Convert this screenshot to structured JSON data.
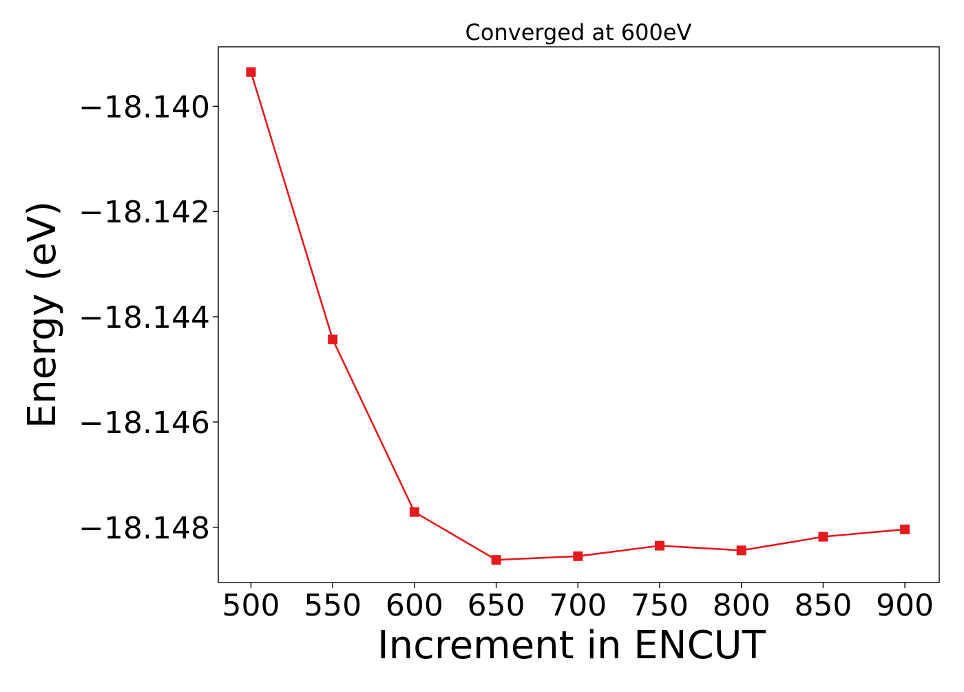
{
  "chart_data": {
    "type": "line",
    "title": "Converged at 600eV",
    "xlabel": "Increment in ENCUT",
    "ylabel": "Energy (eV)",
    "x": [
      500,
      550,
      600,
      650,
      700,
      750,
      800,
      850,
      900
    ],
    "x_ticks": [
      500,
      550,
      600,
      650,
      700,
      750,
      800,
      850,
      900
    ],
    "x_tick_labels": [
      "500",
      "550",
      "600",
      "650",
      "700",
      "750",
      "800",
      "850",
      "900"
    ],
    "y_ticks": [
      -18.148,
      -18.146,
      -18.144,
      -18.142,
      -18.14
    ],
    "y_tick_labels": [
      "−18.148",
      "−18.146",
      "−18.144",
      "−18.142",
      "−18.140"
    ],
    "xlim": [
      480,
      921
    ],
    "ylim": [
      -18.14905,
      -18.13887
    ],
    "series": [
      {
        "values": [
          -18.13935,
          -18.14443,
          -18.14771,
          -18.14862,
          -18.14855,
          -18.14835,
          -18.14844,
          -18.14818,
          -18.14804
        ],
        "color": "#e41a1c",
        "marker": "square"
      }
    ],
    "grid": false,
    "legend": "none"
  }
}
